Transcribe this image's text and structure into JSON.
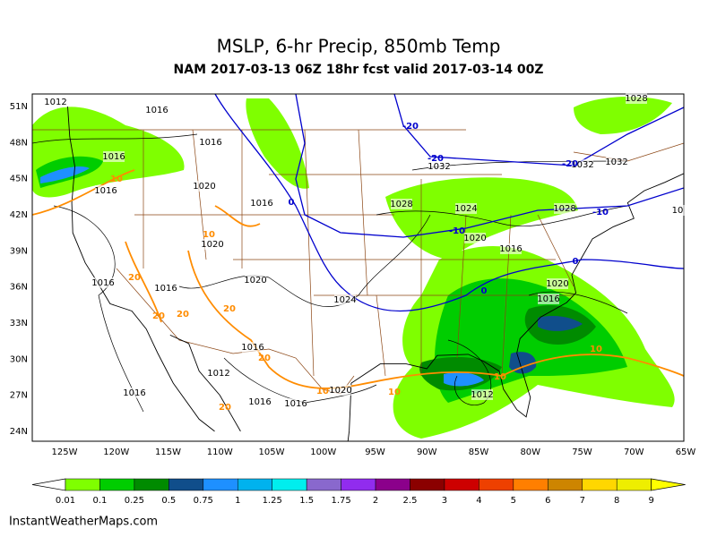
{
  "header": {
    "title": "MSLP, 6-hr Precip, 850mb Temp",
    "subtitle": "NAM 2017-03-13 06Z 18hr fcst valid 2017-03-14 00Z"
  },
  "map": {
    "lat_labels": [
      "51N",
      "48N",
      "45N",
      "42N",
      "39N",
      "36N",
      "33N",
      "30N",
      "27N",
      "24N"
    ],
    "lon_labels": [
      "125W",
      "120W",
      "115W",
      "110W",
      "105W",
      "100W",
      "95W",
      "90W",
      "85W",
      "80W",
      "75W",
      "70W",
      "65W"
    ],
    "isobar_labels": [
      "1012",
      "1016",
      "1016",
      "1016",
      "1016",
      "1020",
      "1016",
      "1020",
      "1016",
      "1016",
      "1020",
      "1024",
      "1028",
      "1024",
      "1020",
      "1016",
      "1028",
      "1032",
      "1032",
      "1032",
      "1028",
      "1020",
      "1016",
      "1016",
      "1012",
      "1016",
      "1016",
      "1016",
      "1020",
      "1012",
      "10"
    ],
    "isotherm_labels": [
      "-20",
      "-20",
      "-20",
      "-10",
      "-10",
      "0",
      "0",
      "0",
      "10",
      "10",
      "10",
      "10",
      "10",
      "10",
      "20",
      "20",
      "20",
      "20",
      "20",
      "20"
    ]
  },
  "colorbar": {
    "labels": [
      0.01,
      0.1,
      0.25,
      0.5,
      0.75,
      1,
      1.25,
      1.5,
      1.75,
      2,
      2.5,
      3,
      4,
      5,
      6,
      7,
      8,
      9
    ],
    "colors": [
      "#ffffff",
      "#7fff00",
      "#00cd00",
      "#008b00",
      "#104e8b",
      "#1e90ff",
      "#00b2ee",
      "#00eeee",
      "#8968cd",
      "#912cee",
      "#8b008b",
      "#8b0000",
      "#cd0000",
      "#ee4000",
      "#ff7f00",
      "#cd8500",
      "#ffd700",
      "#eeee00",
      "#ffff00"
    ]
  },
  "footer": {
    "credit": "InstantWeatherMaps.com"
  }
}
